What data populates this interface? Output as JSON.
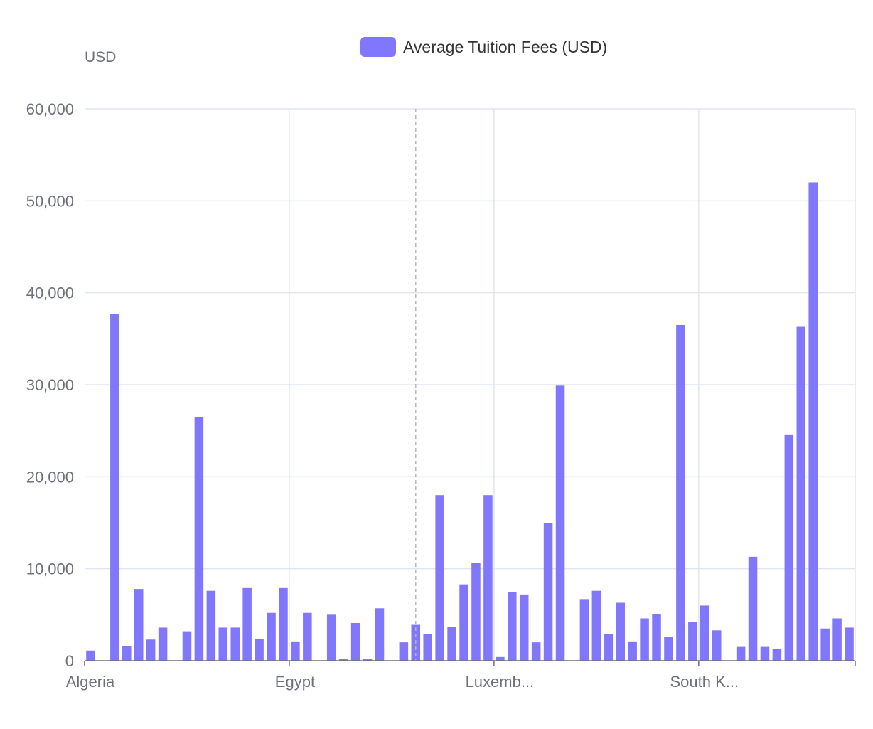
{
  "chart_data": {
    "type": "bar",
    "unit_label": "USD",
    "legend": {
      "label": "Average Tuition Fees (USD)"
    },
    "colors": {
      "bar": "#8177fd",
      "grid": "#e0e6f1",
      "axis": "#6e7079",
      "label": "#6e7079",
      "pointer": "#b7b7b7"
    },
    "ylim": [
      0,
      60000
    ],
    "y_ticks": [
      "60,000",
      "50,000",
      "40,000",
      "30,000",
      "20,000",
      "10,000",
      "0"
    ],
    "x_tick_labels": [
      "Algeria",
      "Egypt",
      "Luxemb...",
      "South K..."
    ],
    "series": [
      {
        "name": "Average Tuition Fees (USD)",
        "values": [
          1100,
          0,
          37700,
          1600,
          7800,
          2300,
          3600,
          0,
          3200,
          26500,
          7600,
          3600,
          3600,
          7900,
          2400,
          5200,
          7900,
          2100,
          5200,
          0,
          5000,
          200,
          4100,
          200,
          5700,
          0,
          2000,
          3900,
          2900,
          18000,
          3700,
          8300,
          10600,
          18000,
          400,
          7500,
          7200,
          2000,
          15000,
          29900,
          0,
          6700,
          7600,
          2900,
          6300,
          2100,
          4600,
          5100,
          2600,
          36500,
          4200,
          6000,
          3300,
          0,
          1500,
          11300,
          1500,
          1300,
          24600,
          36300,
          52000,
          3500,
          4600,
          3600
        ]
      }
    ]
  }
}
